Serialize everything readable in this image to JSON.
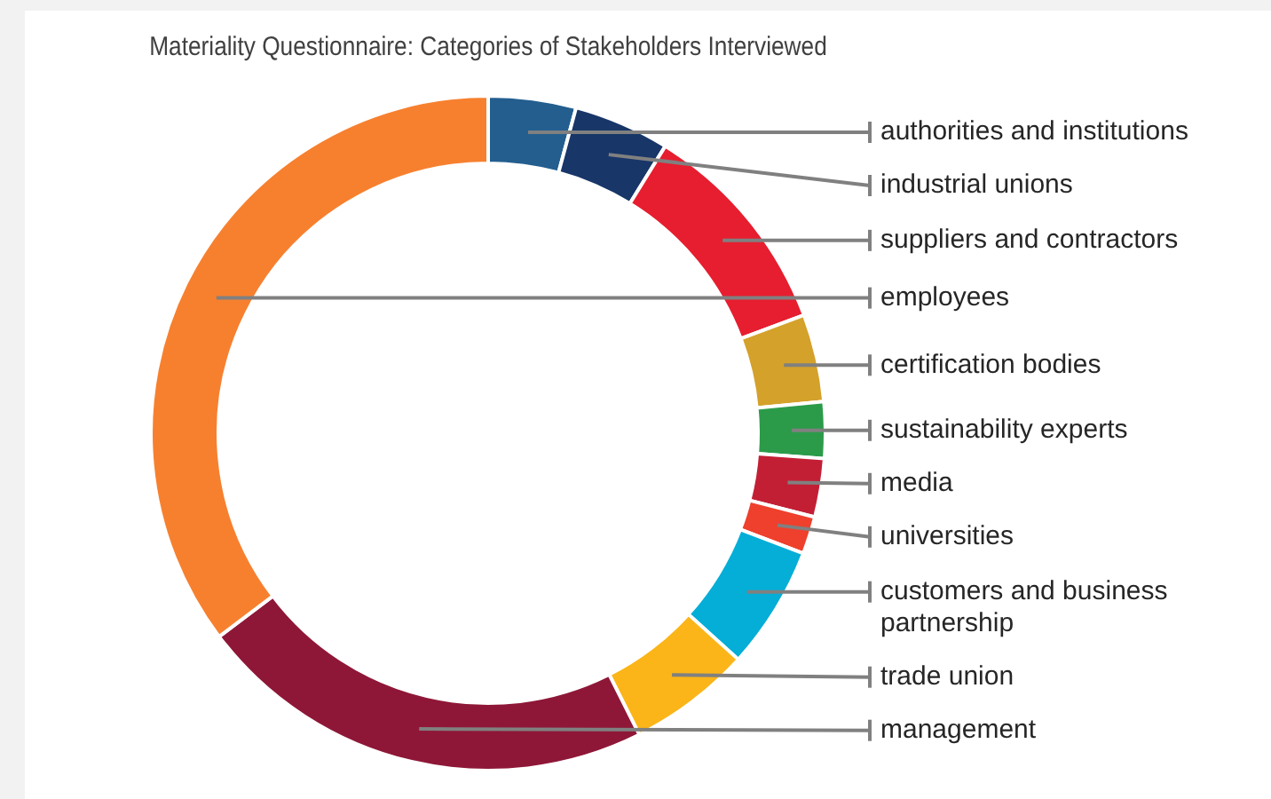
{
  "chart_data": {
    "type": "donut",
    "title": "Materiality Questionnaire: Categories of Stakeholders Interviewed",
    "categories": [
      "authorities and institutions",
      "industrial unions",
      "suppliers and contractors",
      "certification bodies",
      "sustainability experts",
      "media",
      "universities",
      "customers and business partnership",
      "trade union",
      "management",
      "employees"
    ],
    "values": [
      4.2,
      4.6,
      10.5,
      4.2,
      2.7,
      2.8,
      1.8,
      5.9,
      5.9,
      22.1,
      35.3
    ],
    "colors": [
      "#235e8f",
      "#183668",
      "#e61e2f",
      "#d4a12b",
      "#2b9b4a",
      "#c21f35",
      "#ee402d",
      "#04aed7",
      "#fbb518",
      "#8e1737",
      "#f7802f"
    ]
  }
}
